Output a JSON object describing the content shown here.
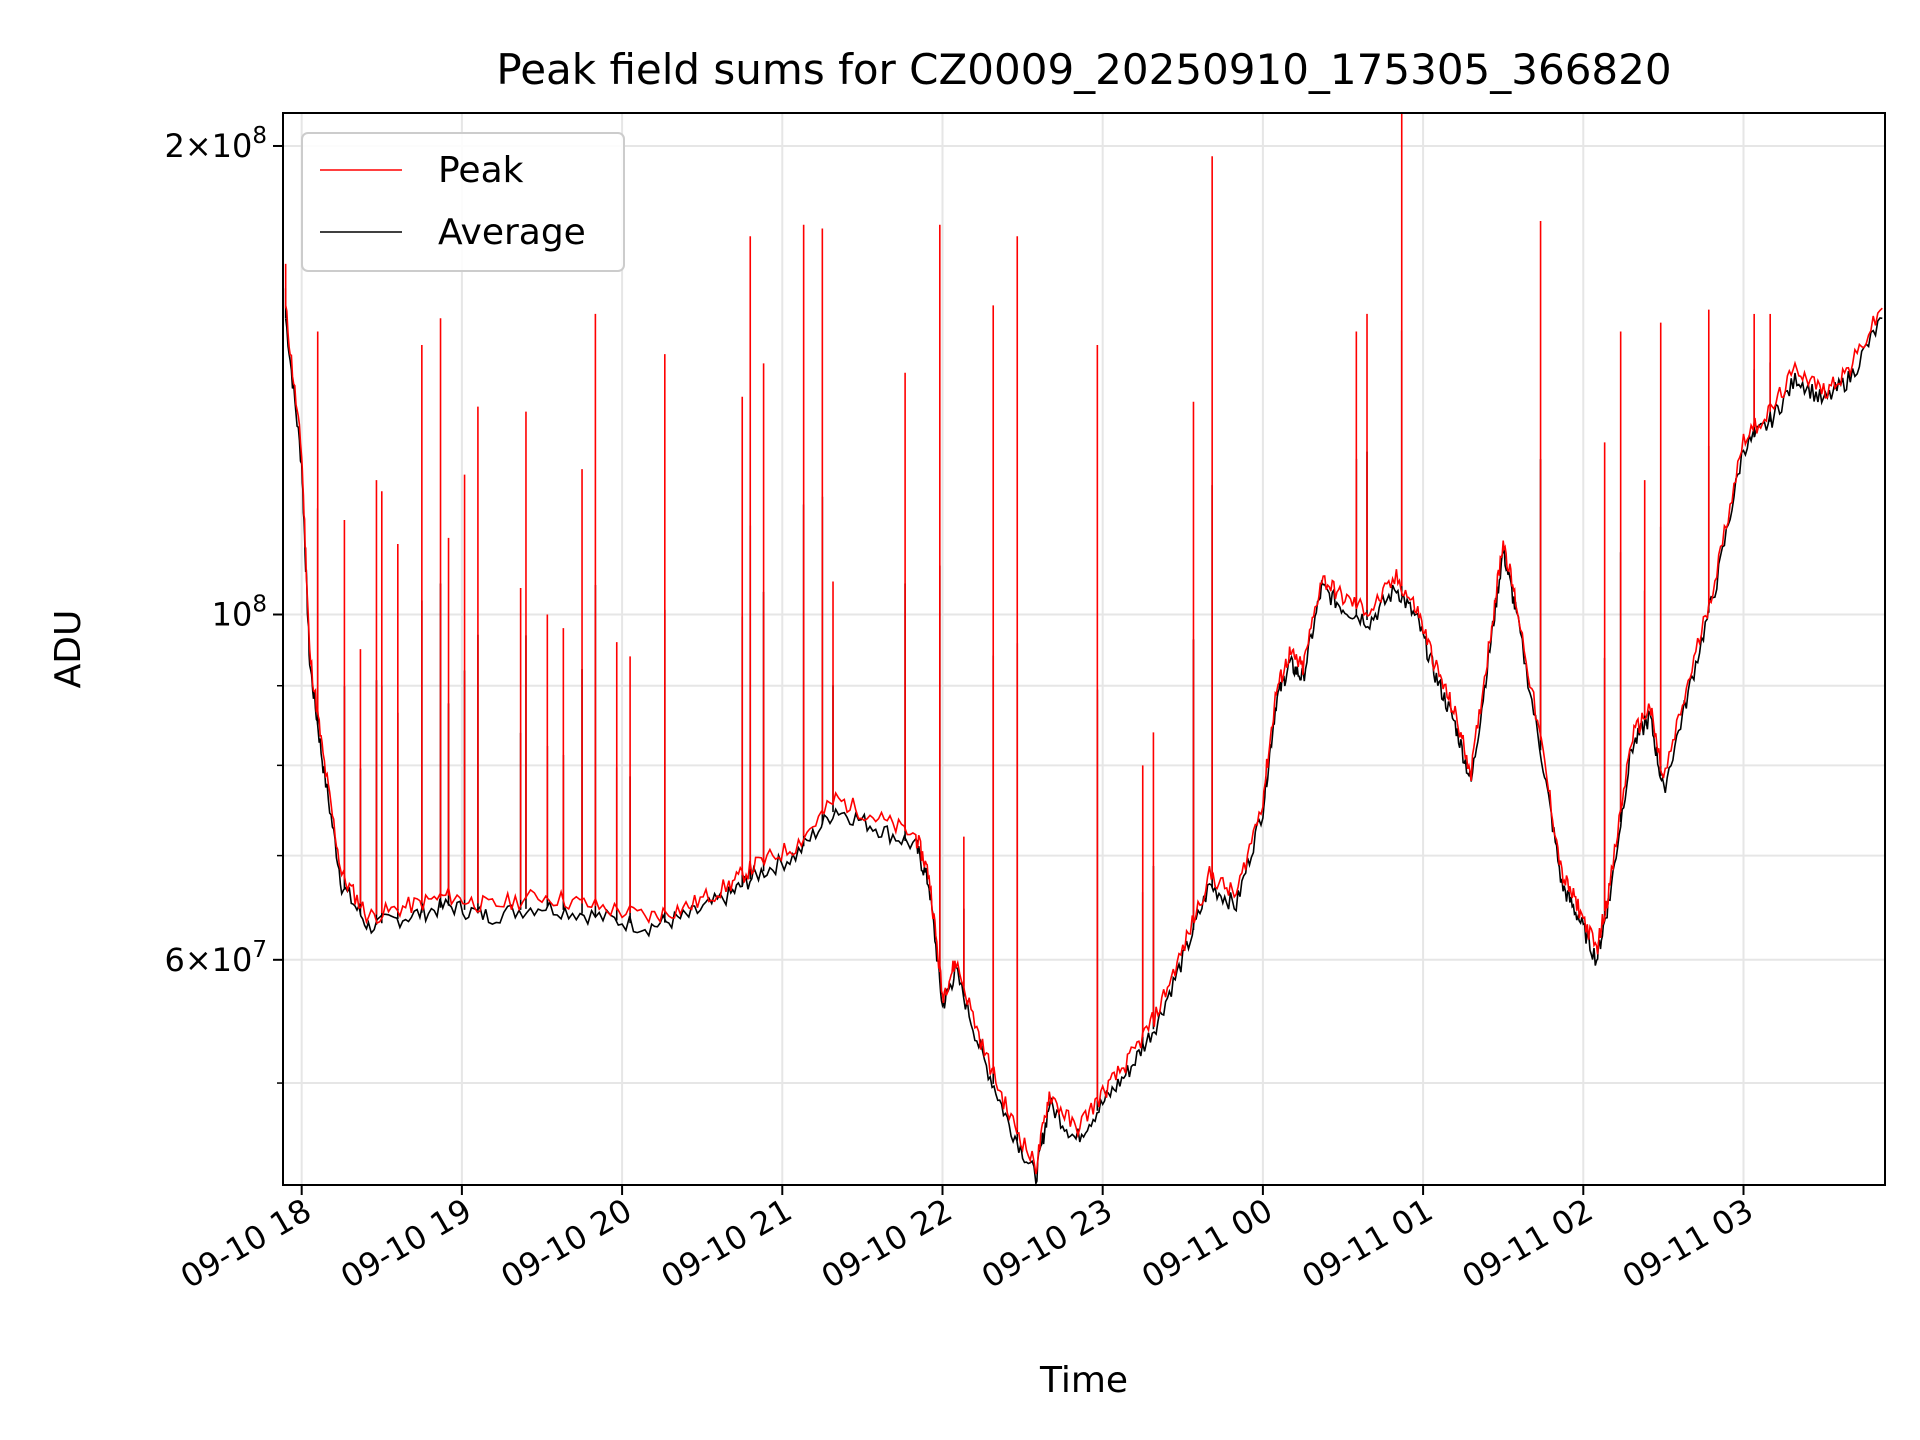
{
  "chart_data": {
    "type": "line",
    "title": "Peak field sums for CZ0009_20250910_175305_366820",
    "xlabel": "Time",
    "ylabel": "ADU",
    "yscale": "log",
    "xlim": [
      "2025-09-10 17:53",
      "2025-09-11 03:53"
    ],
    "ylim": [
      43000000,
      210000000
    ],
    "grid": true,
    "legend_position": "top-left",
    "x_ticks": [
      "09-10 18",
      "09-10 19",
      "09-10 20",
      "09-10 21",
      "09-10 22",
      "09-10 23",
      "09-11 00",
      "09-11 01",
      "09-11 02",
      "09-11 03"
    ],
    "y_major_ticks": [
      {
        "value": 60000000,
        "base": "6",
        "exp": "7"
      },
      {
        "value": 100000000,
        "base": "",
        "exp": "8"
      },
      {
        "value": 200000000,
        "base": "2",
        "exp": "8"
      }
    ],
    "y_minor_ticks": [
      50000000,
      70000000,
      80000000,
      90000000
    ],
    "colors": {
      "peak": "#ff0000",
      "average": "#000000",
      "grid": "#e6e6e6"
    },
    "series": [
      {
        "name": "Average",
        "color": "#000000",
        "points": [
          [
            "2025-09-10 17:54",
            155000000
          ],
          [
            "2025-09-10 18:00",
            125000000
          ],
          [
            "2025-09-10 18:03",
            93000000
          ],
          [
            "2025-09-10 18:08",
            80000000
          ],
          [
            "2025-09-10 18:15",
            67000000
          ],
          [
            "2025-09-10 18:25",
            63000000
          ],
          [
            "2025-09-10 18:40",
            64000000
          ],
          [
            "2025-09-10 18:55",
            65000000
          ],
          [
            "2025-09-10 19:10",
            64000000
          ],
          [
            "2025-09-10 19:30",
            65000000
          ],
          [
            "2025-09-10 19:50",
            64000000
          ],
          [
            "2025-09-10 20:10",
            63000000
          ],
          [
            "2025-09-10 20:25",
            64000000
          ],
          [
            "2025-09-10 20:40",
            66000000
          ],
          [
            "2025-09-10 20:50",
            68000000
          ],
          [
            "2025-09-10 21:05",
            70000000
          ],
          [
            "2025-09-10 21:20",
            75000000
          ],
          [
            "2025-09-10 21:35",
            73000000
          ],
          [
            "2025-09-10 21:50",
            71000000
          ],
          [
            "2025-09-10 21:55",
            67000000
          ],
          [
            "2025-09-10 22:00",
            56000000
          ],
          [
            "2025-09-10 22:05",
            59000000
          ],
          [
            "2025-09-10 22:15",
            52000000
          ],
          [
            "2025-09-10 22:25",
            47000000
          ],
          [
            "2025-09-10 22:35",
            43500000
          ],
          [
            "2025-09-10 22:40",
            48500000
          ],
          [
            "2025-09-10 22:50",
            46000000
          ],
          [
            "2025-09-10 23:00",
            48500000
          ],
          [
            "2025-09-10 23:10",
            51000000
          ],
          [
            "2025-09-10 23:20",
            54500000
          ],
          [
            "2025-09-10 23:30",
            60000000
          ],
          [
            "2025-09-10 23:40",
            67000000
          ],
          [
            "2025-09-10 23:50",
            65000000
          ],
          [
            "2025-09-11 00:00",
            75000000
          ],
          [
            "2025-09-11 00:05",
            88000000
          ],
          [
            "2025-09-11 00:10",
            93000000
          ],
          [
            "2025-09-11 00:15",
            91000000
          ],
          [
            "2025-09-11 00:22",
            104000000
          ],
          [
            "2025-09-11 00:30",
            101000000
          ],
          [
            "2025-09-11 00:40",
            99000000
          ],
          [
            "2025-09-11 00:50",
            104000000
          ],
          [
            "2025-09-11 00:58",
            99000000
          ],
          [
            "2025-09-11 01:05",
            91000000
          ],
          [
            "2025-09-11 01:12",
            85000000
          ],
          [
            "2025-09-11 01:18",
            78000000
          ],
          [
            "2025-09-11 01:25",
            95000000
          ],
          [
            "2025-09-11 01:30",
            110000000
          ],
          [
            "2025-09-11 01:35",
            100000000
          ],
          [
            "2025-09-11 01:45",
            80000000
          ],
          [
            "2025-09-11 01:52",
            67000000
          ],
          [
            "2025-09-11 01:58",
            64000000
          ],
          [
            "2025-09-11 02:05",
            60000000
          ],
          [
            "2025-09-11 02:10",
            66000000
          ],
          [
            "2025-09-11 02:18",
            82000000
          ],
          [
            "2025-09-11 02:25",
            86000000
          ],
          [
            "2025-09-11 02:30",
            77000000
          ],
          [
            "2025-09-11 02:40",
            90000000
          ],
          [
            "2025-09-11 02:50",
            105000000
          ],
          [
            "2025-09-11 03:00",
            128000000
          ],
          [
            "2025-09-11 03:10",
            133000000
          ],
          [
            "2025-09-11 03:20",
            142000000
          ],
          [
            "2025-09-11 03:30",
            137000000
          ],
          [
            "2025-09-11 03:40",
            142000000
          ],
          [
            "2025-09-11 03:52",
            155000000
          ]
        ]
      },
      {
        "name": "Peak",
        "color": "#ff0000",
        "offset_ratio": 1.015,
        "spikes": [
          [
            "2025-09-10 17:54",
            168000000
          ],
          [
            "2025-09-10 18:06",
            152000000
          ],
          [
            "2025-09-10 18:16",
            115000000
          ],
          [
            "2025-09-10 18:22",
            95000000
          ],
          [
            "2025-09-10 18:28",
            122000000
          ],
          [
            "2025-09-10 18:30",
            120000000
          ],
          [
            "2025-09-10 18:36",
            111000000
          ],
          [
            "2025-09-10 18:45",
            149000000
          ],
          [
            "2025-09-10 18:52",
            155000000
          ],
          [
            "2025-09-10 18:55",
            112000000
          ],
          [
            "2025-09-10 19:01",
            123000000
          ],
          [
            "2025-09-10 19:06",
            136000000
          ],
          [
            "2025-09-10 19:22",
            104000000
          ],
          [
            "2025-09-10 19:24",
            135000000
          ],
          [
            "2025-09-10 19:32",
            100000000
          ],
          [
            "2025-09-10 19:38",
            98000000
          ],
          [
            "2025-09-10 19:45",
            124000000
          ],
          [
            "2025-09-10 19:50",
            156000000
          ],
          [
            "2025-09-10 19:58",
            96000000
          ],
          [
            "2025-09-10 20:03",
            94000000
          ],
          [
            "2025-09-10 20:16",
            147000000
          ],
          [
            "2025-09-10 20:45",
            138000000
          ],
          [
            "2025-09-10 20:48",
            175000000
          ],
          [
            "2025-09-10 20:53",
            145000000
          ],
          [
            "2025-09-10 21:08",
            178000000
          ],
          [
            "2025-09-10 21:15",
            177000000
          ],
          [
            "2025-09-10 21:19",
            105000000
          ],
          [
            "2025-09-10 21:46",
            143000000
          ],
          [
            "2025-09-10 21:59",
            178000000
          ],
          [
            "2025-09-10 22:08",
            72000000
          ],
          [
            "2025-09-10 22:19",
            158000000
          ],
          [
            "2025-09-10 22:28",
            175000000
          ],
          [
            "2025-09-10 22:58",
            149000000
          ],
          [
            "2025-09-10 23:15",
            80000000
          ],
          [
            "2025-09-10 23:19",
            84000000
          ],
          [
            "2025-09-10 23:34",
            137000000
          ],
          [
            "2025-09-10 23:41",
            197000000
          ],
          [
            "2025-09-11 00:35",
            152000000
          ],
          [
            "2025-09-11 00:39",
            156000000
          ],
          [
            "2025-09-11 00:52",
            210000000
          ],
          [
            "2025-09-11 01:44",
            179000000
          ],
          [
            "2025-09-11 02:08",
            129000000
          ],
          [
            "2025-09-11 02:14",
            152000000
          ],
          [
            "2025-09-11 02:23",
            122000000
          ],
          [
            "2025-09-11 02:29",
            154000000
          ],
          [
            "2025-09-11 02:47",
            157000000
          ],
          [
            "2025-09-11 03:04",
            156000000
          ],
          [
            "2025-09-11 03:10",
            156000000
          ]
        ]
      }
    ]
  }
}
